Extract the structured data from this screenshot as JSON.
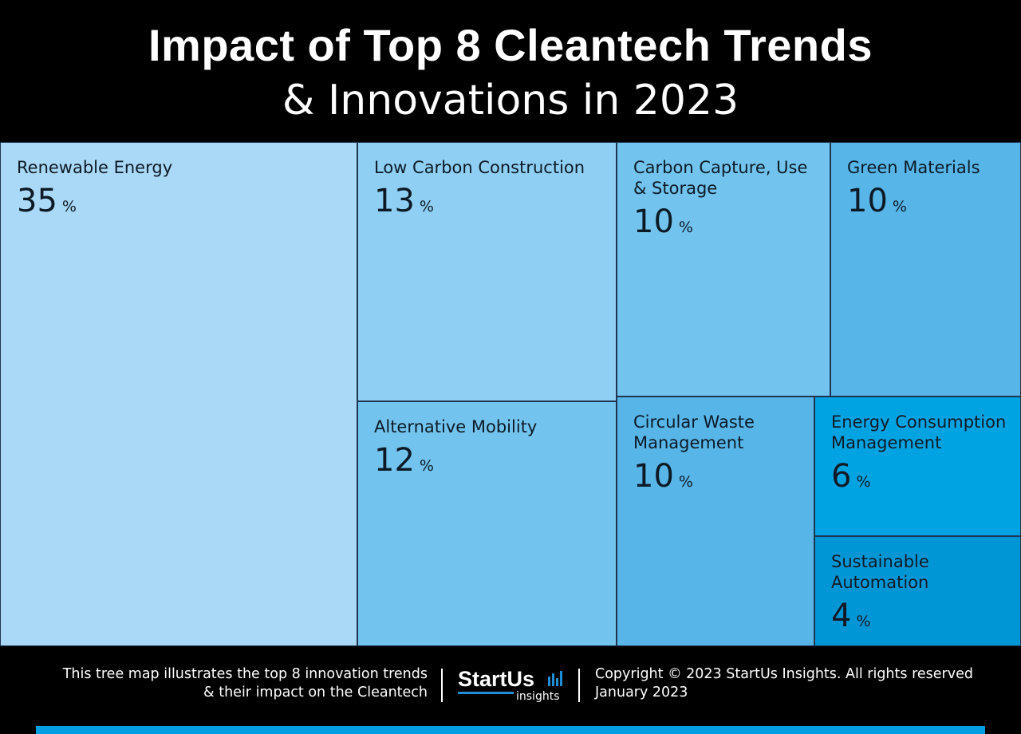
{
  "chart_data": {
    "type": "treemap",
    "title": "Impact of Top 8 Cleantech Trends",
    "subtitle": "& Innovations in 2023",
    "unit": "%",
    "items": [
      {
        "label": "Renewable Energy",
        "value": 35,
        "color": "#aad9f7"
      },
      {
        "label": "Low Carbon Construction",
        "value": 13,
        "color": "#8fcff3"
      },
      {
        "label": "Alternative Mobility",
        "value": 12,
        "color": "#72c4ee"
      },
      {
        "label": "Carbon Capture, Use & Storage",
        "value": 10,
        "color": "#72c4ee"
      },
      {
        "label": "Green Materials",
        "value": 10,
        "color": "#57b5e8"
      },
      {
        "label": "Circular Waste Management",
        "value": 10,
        "color": "#57b5e8"
      },
      {
        "label": "Energy Consumption Management",
        "value": 6,
        "color": "#00a3e2"
      },
      {
        "label": "Sustainable Automation",
        "value": 4,
        "color": "#0096d6"
      }
    ]
  },
  "footer": {
    "description_line1": "This tree map illustrates the top 8 innovation trends",
    "description_line2": "& their impact on the Cleantech",
    "logo_main": "StartUs",
    "logo_sub": "insights",
    "copyright": "Copyright © 2023 StartUs Insights. All rights reserved",
    "date": "January 2023"
  },
  "colors": {
    "background": "#000000",
    "accent": "#009ee3"
  }
}
